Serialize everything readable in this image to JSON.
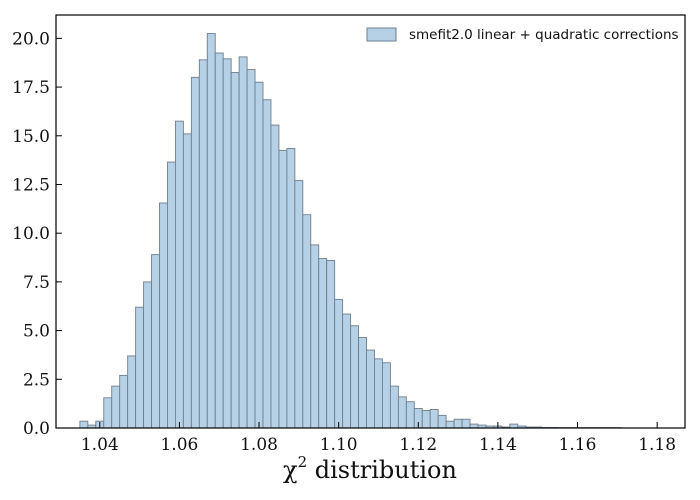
{
  "chart_data": {
    "type": "bar",
    "subtype": "histogram",
    "title": "",
    "xlabel_main": "χ",
    "xlabel_sup": "2",
    "xlabel_rest": " distribution",
    "ylabel": "",
    "xlim": [
      1.029,
      1.187
    ],
    "ylim": [
      0,
      21.2
    ],
    "bin_width": 0.002,
    "x_ticks": [
      1.04,
      1.06,
      1.08,
      1.1,
      1.12,
      1.14,
      1.16,
      1.18
    ],
    "x_tick_labels": [
      "1.04",
      "1.06",
      "1.08",
      "1.10",
      "1.12",
      "1.14",
      "1.16",
      "1.18"
    ],
    "y_ticks": [
      0,
      2.5,
      5,
      7.5,
      10,
      12.5,
      15,
      17.5,
      20
    ],
    "y_tick_labels": [
      "0.0",
      "2.5",
      "5.0",
      "7.5",
      "10.0",
      "12.5",
      "15.0",
      "17.5",
      "20.0"
    ],
    "grid": false,
    "legend_position": "top-right",
    "series": [
      {
        "name": "smefit2.0 linear + quadratic corrections",
        "color": "#b6d0e5",
        "edge_color": "#6f7f8c",
        "bin_starts": [
          1.035,
          1.037,
          1.039,
          1.041,
          1.043,
          1.045,
          1.047,
          1.049,
          1.051,
          1.053,
          1.055,
          1.057,
          1.059,
          1.061,
          1.063,
          1.065,
          1.067,
          1.069,
          1.071,
          1.073,
          1.075,
          1.077,
          1.079,
          1.081,
          1.083,
          1.085,
          1.087,
          1.089,
          1.091,
          1.093,
          1.095,
          1.097,
          1.099,
          1.101,
          1.103,
          1.105,
          1.107,
          1.109,
          1.111,
          1.113,
          1.115,
          1.117,
          1.119,
          1.121,
          1.123,
          1.125,
          1.127,
          1.129,
          1.131,
          1.133,
          1.135,
          1.137,
          1.139,
          1.141,
          1.143,
          1.145,
          1.147,
          1.149,
          1.151,
          1.153,
          1.155,
          1.157,
          1.159,
          1.161,
          1.163,
          1.165,
          1.167,
          1.169
        ],
        "values": [
          0.35,
          0.15,
          0.35,
          1.55,
          2.15,
          2.7,
          3.7,
          6.2,
          7.5,
          8.9,
          11.55,
          13.65,
          15.75,
          15.1,
          18.0,
          18.9,
          20.25,
          19.25,
          18.95,
          18.25,
          19.05,
          18.4,
          17.75,
          16.85,
          15.55,
          14.25,
          14.35,
          12.7,
          10.95,
          9.4,
          8.7,
          8.6,
          6.6,
          5.85,
          5.25,
          4.65,
          4.0,
          3.55,
          3.35,
          2.15,
          1.6,
          1.35,
          1.0,
          0.9,
          0.95,
          0.65,
          0.35,
          0.45,
          0.45,
          0.2,
          0.15,
          0.1,
          0.1,
          0.05,
          0.2,
          0.1,
          0.05,
          0.05,
          0.03,
          0.03,
          0.02,
          0.02,
          0.02,
          0.02,
          0.02,
          0.02,
          0.02,
          0.02
        ]
      }
    ]
  }
}
